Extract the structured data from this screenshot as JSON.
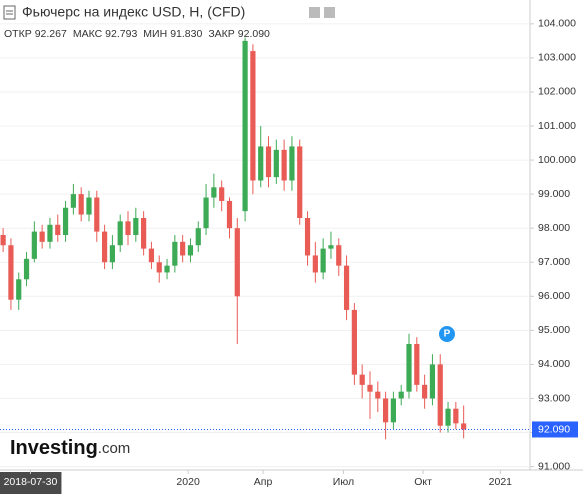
{
  "chart_data": {
    "type": "candlestick",
    "title": "Фьючерс на индекс USD, H, (CFD)",
    "ohlc_header": [
      {
        "name": "ОТКР",
        "value": "92.267"
      },
      {
        "name": "МАКС",
        "value": "92.793"
      },
      {
        "name": "МИН",
        "value": "91.830"
      },
      {
        "name": "ЗАКР",
        "value": "92.090"
      }
    ],
    "up_color": "#3daa55",
    "down_color": "#e95b55",
    "open": [
      97.8,
      97.5,
      95.9,
      96.5,
      97.1,
      97.9,
      97.6,
      98.1,
      97.8,
      98.6,
      99.0,
      98.4,
      98.9,
      97.9,
      97.0,
      97.5,
      98.2,
      97.8,
      98.3,
      97.4,
      97.0,
      96.7,
      96.9,
      97.6,
      97.2,
      97.5,
      98.0,
      98.9,
      99.2,
      98.8,
      98.0,
      98.5,
      103.2,
      99.4,
      100.4,
      99.5,
      100.3,
      99.4,
      100.4,
      98.3,
      97.2,
      96.7,
      97.4,
      97.5,
      96.9,
      95.6,
      93.7,
      93.4,
      93.2,
      93.0,
      92.3,
      93.0,
      93.2,
      94.6,
      93.4,
      93.0,
      94.0,
      92.2,
      92.7,
      92.267
    ],
    "high": [
      98.0,
      97.7,
      96.7,
      97.3,
      98.2,
      98.1,
      98.3,
      98.4,
      98.8,
      99.3,
      99.2,
      99.1,
      99.1,
      98.1,
      97.8,
      98.4,
      98.5,
      98.6,
      98.5,
      97.6,
      97.2,
      97.1,
      97.8,
      97.8,
      97.7,
      98.2,
      99.3,
      99.6,
      99.4,
      98.9,
      98.3,
      103.6,
      103.4,
      101.0,
      100.7,
      100.6,
      100.6,
      100.7,
      100.6,
      98.5,
      97.6,
      97.7,
      97.9,
      97.7,
      97.2,
      95.8,
      94.0,
      93.8,
      93.5,
      93.2,
      93.2,
      93.4,
      94.9,
      94.8,
      93.7,
      94.3,
      94.3,
      92.9,
      92.9,
      92.793
    ],
    "low": [
      97.3,
      95.6,
      95.6,
      96.3,
      97.0,
      97.4,
      97.4,
      97.6,
      97.6,
      98.4,
      98.2,
      98.2,
      97.6,
      96.8,
      96.8,
      97.3,
      97.5,
      97.6,
      97.2,
      96.8,
      96.4,
      96.5,
      96.7,
      97.0,
      97.0,
      97.3,
      97.8,
      98.6,
      98.5,
      97.7,
      94.6,
      98.2,
      99.0,
      99.2,
      99.2,
      99.3,
      99.1,
      99.1,
      98.1,
      96.9,
      96.4,
      96.5,
      97.1,
      96.6,
      95.3,
      93.4,
      93.0,
      92.4,
      92.6,
      91.8,
      92.1,
      92.8,
      93.0,
      93.2,
      92.7,
      92.8,
      92.0,
      92.0,
      92.1,
      91.83
    ],
    "close": [
      97.5,
      95.9,
      96.5,
      97.1,
      97.9,
      97.6,
      98.1,
      97.8,
      98.6,
      99.0,
      98.4,
      98.9,
      97.9,
      97.0,
      97.5,
      98.2,
      97.8,
      98.3,
      97.4,
      97.0,
      96.7,
      96.9,
      97.6,
      97.2,
      97.5,
      98.0,
      98.9,
      99.2,
      98.8,
      98.0,
      96.0,
      103.5,
      99.4,
      100.4,
      99.5,
      100.3,
      99.4,
      100.4,
      98.3,
      97.2,
      96.7,
      97.4,
      97.5,
      96.9,
      95.6,
      93.7,
      93.4,
      93.2,
      93.0,
      92.3,
      93.0,
      93.2,
      94.6,
      93.4,
      93.0,
      94.0,
      92.2,
      92.7,
      92.27,
      92.09
    ],
    "last_price": {
      "value": 92.09,
      "label": "92.090"
    },
    "ylim": [
      90.9,
      104.7
    ],
    "yticks": [
      {
        "value": 91,
        "label": "91.000"
      },
      {
        "value": 92,
        "label": "92.000"
      },
      {
        "value": 93,
        "label": "93.000"
      },
      {
        "value": 94,
        "label": "94.000"
      },
      {
        "value": 95,
        "label": "95.000"
      },
      {
        "value": 96,
        "label": "96.000"
      },
      {
        "value": 97,
        "label": "97.000"
      },
      {
        "value": 98,
        "label": "98.000"
      },
      {
        "value": 99,
        "label": "99.000"
      },
      {
        "value": 100,
        "label": "100.000"
      },
      {
        "value": 101,
        "label": "101.000"
      },
      {
        "value": 102,
        "label": "102.000"
      },
      {
        "value": 103,
        "label": "103.000"
      },
      {
        "value": 104,
        "label": "104.000"
      }
    ],
    "xlim": [
      -0.4,
      67.5
    ],
    "xticks": [
      {
        "value": 3.5,
        "label": "2018-07-30"
      },
      {
        "value": 23.7,
        "label": "2020"
      },
      {
        "value": 33.3,
        "label": "Апр"
      },
      {
        "value": 43.6,
        "label": "Июл"
      },
      {
        "value": 53.8,
        "label": "Окт"
      },
      {
        "value": 63.7,
        "label": "2021"
      }
    ],
    "marker": "P",
    "logo": {
      "name": "Investing",
      "suffix": ".com"
    }
  }
}
